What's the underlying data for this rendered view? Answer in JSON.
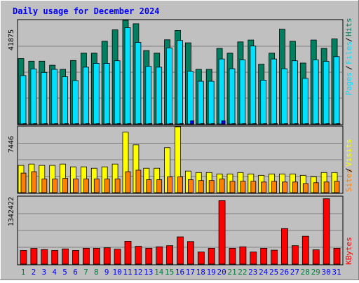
{
  "chart_data": [
    {
      "type": "bar",
      "title": "Daily usage for December 2024",
      "categories": [
        "1",
        "2",
        "3",
        "4",
        "5",
        "6",
        "7",
        "8",
        "9",
        "10",
        "11",
        "12",
        "13",
        "14",
        "15",
        "16",
        "17",
        "18",
        "19",
        "20",
        "21",
        "22",
        "23",
        "24",
        "25",
        "26",
        "27",
        "28",
        "29",
        "30",
        "31"
      ],
      "weekend_day_color": "#008040",
      "weekday_day_color": "#0000ff",
      "weekend_days": [
        "1",
        "7",
        "8",
        "14",
        "15",
        "21",
        "22",
        "28",
        "29"
      ],
      "ytick": "41875",
      "ylim": [
        0,
        48000
      ],
      "legend": [
        "Pages",
        "Files",
        "Hits"
      ],
      "series": [
        {
          "name": "Hits",
          "color": "#008060",
          "values": [
            30300,
            29100,
            29100,
            27200,
            25300,
            29400,
            32800,
            32800,
            38300,
            43600,
            48000,
            46400,
            34000,
            32800,
            39000,
            43300,
            37600,
            25300,
            25300,
            35000,
            32800,
            38000,
            38900,
            27700,
            32800,
            43900,
            38300,
            28200,
            38900,
            35000,
            39400
          ]
        },
        {
          "name": "Files",
          "color": "#00e0ff",
          "values": [
            22400,
            25500,
            23900,
            25300,
            21900,
            20100,
            26300,
            28100,
            28100,
            29300,
            44600,
            37800,
            26700,
            26300,
            35200,
            38700,
            24400,
            19800,
            19800,
            30100,
            25600,
            29700,
            36100,
            20300,
            30100,
            25600,
            29300,
            21100,
            29700,
            29000,
            31200
          ]
        },
        {
          "name": "Pages",
          "color": "#0000ff",
          "values": [
            150,
            150,
            150,
            150,
            150,
            150,
            150,
            150,
            150,
            150,
            150,
            150,
            150,
            150,
            150,
            150,
            1500,
            150,
            150,
            1500,
            150,
            150,
            150,
            150,
            150,
            150,
            150,
            150,
            150,
            150,
            150
          ]
        }
      ]
    },
    {
      "type": "bar",
      "ytick": "7446",
      "ylim": [
        0,
        8100
      ],
      "legend": [
        "Sites",
        "Visits"
      ],
      "series": [
        {
          "name": "Visits",
          "color": "#ffff00",
          "values": [
            3350,
            3520,
            3350,
            3350,
            3520,
            3170,
            3170,
            3000,
            3170,
            3520,
            7446,
            5880,
            3000,
            3000,
            5530,
            8100,
            2650,
            2470,
            2470,
            2300,
            2300,
            2470,
            2300,
            2130,
            2300,
            2300,
            2300,
            2130,
            1950,
            2470,
            2470
          ]
        },
        {
          "name": "Sites",
          "color": "#ff8000",
          "values": [
            2400,
            2580,
            1680,
            1680,
            1760,
            1680,
            1680,
            1680,
            1680,
            1680,
            2580,
            2770,
            1590,
            1590,
            1950,
            1950,
            1590,
            1490,
            1490,
            1680,
            1400,
            1400,
            1400,
            1310,
            1400,
            1310,
            1310,
            1120,
            1220,
            1310,
            1400
          ]
        }
      ]
    },
    {
      "type": "bar",
      "ytick": "1342422",
      "ylim": [
        0,
        2120000
      ],
      "legend": [
        "KBytes"
      ],
      "series": [
        {
          "name": "KBytes",
          "color": "#ff0000",
          "values": [
            430000,
            495000,
            460000,
            430000,
            480000,
            430000,
            500000,
            500000,
            515000,
            470000,
            720000,
            560000,
            500000,
            545000,
            580000,
            860000,
            710000,
            380000,
            500000,
            2000000,
            500000,
            545000,
            380000,
            500000,
            440000,
            1120000,
            580000,
            880000,
            450000,
            2060000,
            500000
          ]
        }
      ]
    }
  ]
}
